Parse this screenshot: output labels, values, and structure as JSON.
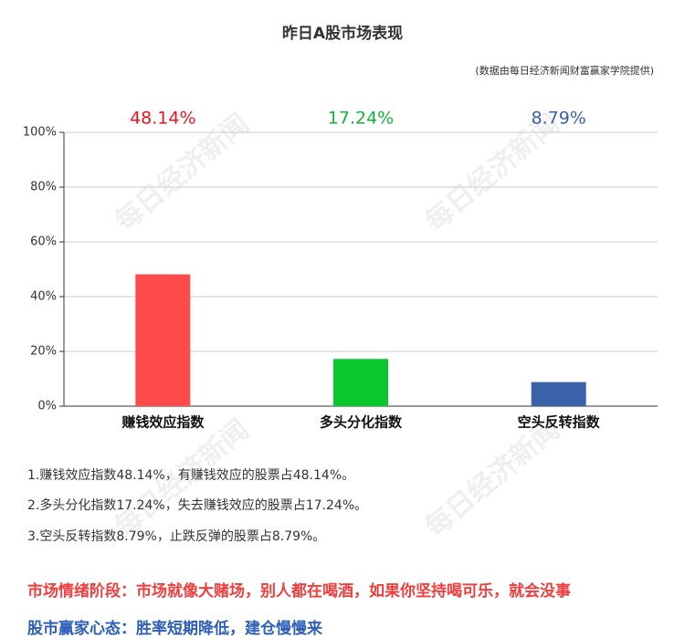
{
  "chart_data": {
    "type": "bar",
    "title": "昨日A股市场表现",
    "subtitle": "(数据由每日经济新闻财富赢家学院提供)",
    "categories": [
      "赚钱效应指数",
      "多头分化指数",
      "空头反转指数"
    ],
    "values": [
      48.14,
      17.24,
      8.79
    ],
    "value_labels": [
      "48.14%",
      "17.24%",
      "8.79%"
    ],
    "colors": [
      "#ff4b4b",
      "#08c82c",
      "#3a62a8"
    ],
    "label_colors": [
      "#f0141e",
      "#17b13a",
      "#3a62a8"
    ],
    "ylim": [
      0,
      100
    ],
    "yticks": [
      {
        "value": 0,
        "label": "0%"
      },
      {
        "value": 20,
        "label": "20%"
      },
      {
        "value": 40,
        "label": "40%"
      },
      {
        "value": 60,
        "label": "60%"
      },
      {
        "value": 80,
        "label": "80%"
      },
      {
        "value": 100,
        "label": "100%"
      }
    ],
    "grid": true
  },
  "watermark": "每日经济新闻",
  "notes": [
    "1.赚钱效应指数48.14%，有赚钱效应的股票占48.14%。",
    "2.多头分化指数17.24%，失去赚钱效应的股票占17.24%。",
    "3.空头反转指数8.79%，止跌反弹的股票占8.79%。"
  ],
  "sentiment": "市场情绪阶段：市场就像大赌场，别人都在喝酒，如果你坚持喝可乐，就会没事",
  "mindset": "股市赢家心态：胜率短期降低，建仓慢慢来"
}
